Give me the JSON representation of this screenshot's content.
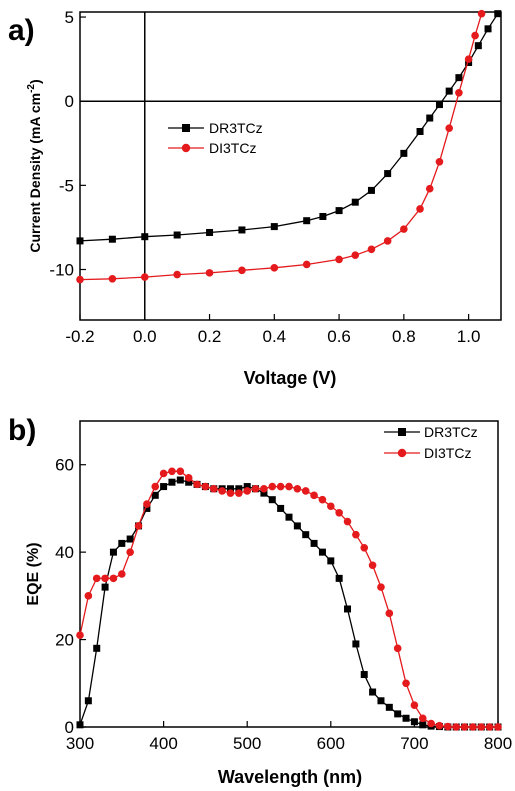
{
  "panels": [
    {
      "panel_label": "a)",
      "xlabel": "Voltage (V)",
      "ylabel_main": "Current Density (mA cm",
      "ylabel_sup": "-2",
      "ylabel_end": ")",
      "x_tick_labels": [
        "-0.2",
        "0.0",
        "0.2",
        "0.4",
        "0.6",
        "0.8",
        "1.0"
      ],
      "y_tick_labels": [
        "5",
        "0",
        "-5",
        "-10"
      ],
      "legend": [
        "DR3TCz",
        "DI3TCz"
      ]
    },
    {
      "panel_label": "b)",
      "xlabel": "Wavelength (nm)",
      "ylabel": "EQE (%)",
      "x_tick_labels": [
        "300",
        "400",
        "500",
        "600",
        "700",
        "800"
      ],
      "y_tick_labels": [
        "0",
        "20",
        "40",
        "60"
      ],
      "legend": [
        "DR3TCz",
        "DI3TCz"
      ]
    }
  ],
  "colors": {
    "DR3TCz": "#000000",
    "DI3TCz": "#e41a1c"
  },
  "chart_data": [
    {
      "type": "line",
      "panel": "a)",
      "xlabel": "Voltage (V)",
      "ylabel": "Current Density (mA cm-2)",
      "xlim": [
        -0.2,
        1.1
      ],
      "ylim": [
        -13,
        5.3
      ],
      "xticks": [
        -0.2,
        0.0,
        0.2,
        0.4,
        0.6,
        0.8,
        1.0
      ],
      "yticks": [
        5,
        0,
        -5,
        -10
      ],
      "reference_lines": {
        "x": 0,
        "y": 0
      },
      "legend_position": "center-left",
      "series": [
        {
          "name": "DR3TCz",
          "marker": "square",
          "x": [
            -0.2,
            -0.1,
            0.0,
            0.1,
            0.2,
            0.3,
            0.4,
            0.5,
            0.55,
            0.6,
            0.65,
            0.7,
            0.75,
            0.8,
            0.85,
            0.88,
            0.91,
            0.94,
            0.97,
            1.0,
            1.03,
            1.06,
            1.09
          ],
          "y": [
            -8.3,
            -8.2,
            -8.05,
            -7.95,
            -7.8,
            -7.65,
            -7.45,
            -7.1,
            -6.85,
            -6.5,
            -6.0,
            -5.3,
            -4.3,
            -3.1,
            -1.8,
            -1.0,
            -0.2,
            0.6,
            1.4,
            2.3,
            3.3,
            4.3,
            5.2
          ]
        },
        {
          "name": "DI3TCz",
          "marker": "circle",
          "x": [
            -0.2,
            -0.1,
            0.0,
            0.1,
            0.2,
            0.3,
            0.4,
            0.5,
            0.6,
            0.65,
            0.7,
            0.75,
            0.8,
            0.85,
            0.88,
            0.91,
            0.94,
            0.97,
            1.0,
            1.02,
            1.04
          ],
          "y": [
            -10.6,
            -10.55,
            -10.45,
            -10.3,
            -10.2,
            -10.05,
            -9.9,
            -9.7,
            -9.4,
            -9.15,
            -8.8,
            -8.3,
            -7.6,
            -6.4,
            -5.2,
            -3.6,
            -1.6,
            0.5,
            2.5,
            3.9,
            5.2
          ]
        }
      ]
    },
    {
      "type": "line",
      "panel": "b)",
      "xlabel": "Wavelength (nm)",
      "ylabel": "EQE (%)",
      "xlim": [
        300,
        800
      ],
      "ylim": [
        0,
        70
      ],
      "xticks": [
        300,
        400,
        500,
        600,
        700,
        800
      ],
      "yticks": [
        0,
        20,
        40,
        60
      ],
      "legend_position": "top-right",
      "series": [
        {
          "name": "DR3TCz",
          "marker": "square",
          "x": [
            300,
            310,
            320,
            330,
            340,
            350,
            360,
            370,
            380,
            390,
            400,
            410,
            420,
            430,
            440,
            450,
            460,
            470,
            480,
            490,
            500,
            510,
            520,
            530,
            540,
            550,
            560,
            570,
            580,
            590,
            600,
            610,
            620,
            630,
            640,
            650,
            660,
            670,
            680,
            690,
            700,
            710,
            720,
            730,
            740,
            750,
            760,
            770,
            780,
            790,
            800
          ],
          "y": [
            0.5,
            6,
            18,
            32,
            40,
            42,
            43,
            46,
            50,
            53,
            55,
            56,
            56.5,
            56,
            55.5,
            55,
            54.5,
            54.5,
            54.5,
            54.5,
            55,
            54.5,
            53.5,
            52,
            50,
            48,
            46,
            44,
            42,
            40,
            38,
            34,
            27,
            19,
            12,
            8,
            6,
            4.5,
            3,
            2,
            1.2,
            0.5,
            0.2,
            0.1,
            0,
            0,
            0,
            0,
            0,
            0,
            0
          ]
        },
        {
          "name": "DI3TCz",
          "marker": "circle",
          "x": [
            300,
            310,
            320,
            330,
            340,
            350,
            360,
            370,
            380,
            390,
            400,
            410,
            420,
            430,
            440,
            450,
            460,
            470,
            480,
            490,
            500,
            510,
            520,
            530,
            540,
            550,
            560,
            570,
            580,
            590,
            600,
            610,
            620,
            630,
            640,
            650,
            660,
            670,
            680,
            690,
            700,
            710,
            720,
            730,
            740,
            750,
            760,
            770,
            780,
            790,
            800
          ],
          "y": [
            21,
            30,
            34,
            34,
            34,
            35,
            40,
            46,
            51,
            55,
            58,
            58.5,
            58.5,
            57,
            55.5,
            55,
            54.5,
            54,
            53.5,
            53.5,
            54,
            54.5,
            54.5,
            55,
            55,
            55,
            54.5,
            54,
            53,
            52,
            50.5,
            49,
            47,
            44,
            41,
            37,
            32,
            26,
            18,
            10,
            5,
            2,
            0.8,
            0.3,
            0.1,
            0,
            0,
            0,
            0,
            0,
            0
          ]
        }
      ]
    }
  ]
}
